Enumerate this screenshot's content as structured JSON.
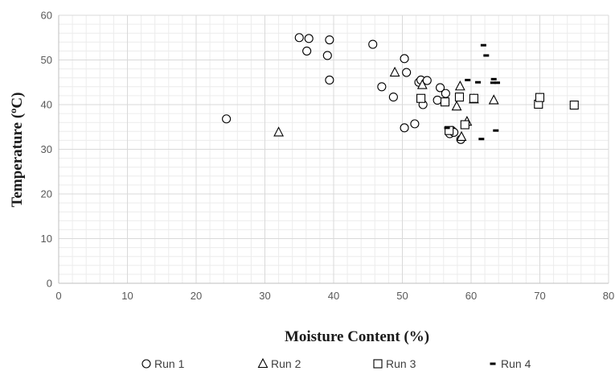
{
  "chart_data": {
    "type": "scatter",
    "xlabel": "Moisture Content (%)",
    "ylabel": "Temperature (ºC)",
    "xlim": [
      0,
      80
    ],
    "ylim": [
      0,
      60
    ],
    "x_ticks": [
      "0",
      "10",
      "20",
      "30",
      "40",
      "50",
      "60",
      "70",
      "80"
    ],
    "y_ticks": [
      "0",
      "10",
      "20",
      "30",
      "40",
      "50",
      "60"
    ],
    "grid": "major and minor",
    "legend_position": "bottom",
    "series": [
      {
        "name": "Run 1",
        "marker": "circle",
        "points": [
          [
            24.4,
            36.8
          ],
          [
            35.0,
            55.0
          ],
          [
            36.4,
            54.8
          ],
          [
            36.1,
            52.0
          ],
          [
            39.1,
            51.0
          ],
          [
            39.4,
            54.5
          ],
          [
            39.4,
            45.5
          ],
          [
            45.7,
            53.5
          ],
          [
            47.0,
            44.0
          ],
          [
            48.7,
            41.7
          ],
          [
            50.3,
            50.3
          ],
          [
            50.6,
            47.2
          ],
          [
            50.3,
            34.8
          ],
          [
            51.8,
            35.7
          ],
          [
            52.4,
            45.0
          ],
          [
            52.7,
            45.5
          ],
          [
            53.0,
            40.0
          ],
          [
            53.6,
            45.4
          ],
          [
            55.1,
            41.0
          ],
          [
            55.5,
            43.8
          ],
          [
            56.3,
            42.5
          ],
          [
            56.9,
            33.5
          ],
          [
            57.2,
            34.2
          ],
          [
            57.5,
            33.8
          ],
          [
            58.5,
            32.2
          ]
        ]
      },
      {
        "name": "Run 2",
        "marker": "triangle",
        "points": [
          [
            32.0,
            33.8
          ],
          [
            48.9,
            47.2
          ],
          [
            52.9,
            44.4
          ],
          [
            57.9,
            39.6
          ],
          [
            58.4,
            44.1
          ],
          [
            58.6,
            32.8
          ],
          [
            59.4,
            36.2
          ],
          [
            60.4,
            41.2
          ],
          [
            63.3,
            41.0
          ]
        ]
      },
      {
        "name": "Run 3",
        "marker": "square",
        "points": [
          [
            52.7,
            41.4
          ],
          [
            56.2,
            40.6
          ],
          [
            56.8,
            34.2
          ],
          [
            58.3,
            41.7
          ],
          [
            59.1,
            35.5
          ],
          [
            60.4,
            41.4
          ],
          [
            69.8,
            40.1
          ],
          [
            70.0,
            41.6
          ],
          [
            75.0,
            39.9
          ]
        ]
      },
      {
        "name": "Run 4",
        "marker": "dash",
        "points": [
          [
            56.5,
            34.8
          ],
          [
            59.5,
            45.5
          ],
          [
            61.0,
            45.0
          ],
          [
            61.5,
            32.3
          ],
          [
            61.8,
            53.3
          ],
          [
            62.2,
            51.0
          ],
          [
            63.3,
            45.7
          ],
          [
            63.2,
            44.9
          ],
          [
            63.6,
            34.2
          ],
          [
            63.8,
            44.9
          ]
        ]
      }
    ],
    "colors": {
      "marker": "#000000",
      "grid": "#d9d9d9",
      "axis": "#bfbfbf"
    }
  }
}
